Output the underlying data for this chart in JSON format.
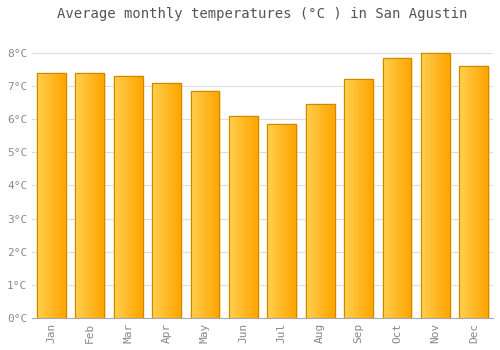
{
  "title": "Average monthly temperatures (°C ) in San Agustin",
  "months": [
    "Jan",
    "Feb",
    "Mar",
    "Apr",
    "May",
    "Jun",
    "Jul",
    "Aug",
    "Sep",
    "Oct",
    "Nov",
    "Dec"
  ],
  "values": [
    7.4,
    7.4,
    7.3,
    7.1,
    6.85,
    6.1,
    5.85,
    6.45,
    7.2,
    7.85,
    8.0,
    7.6
  ],
  "bar_color_main": "#FFA500",
  "bar_color_light": "#FFD050",
  "bar_color_edge": "#CC8800",
  "ylim": [
    0,
    8.8
  ],
  "yticks": [
    0,
    1,
    2,
    3,
    4,
    5,
    6,
    7,
    8
  ],
  "ytick_labels": [
    "0°C",
    "1°C",
    "2°C",
    "3°C",
    "4°C",
    "5°C",
    "6°C",
    "7°C",
    "8°C"
  ],
  "grid_color": "#dddddd",
  "background_color": "#ffffff",
  "title_fontsize": 10,
  "tick_fontsize": 8,
  "tick_color": "#888888",
  "title_color": "#555555",
  "font_family": "monospace",
  "bar_width": 0.75
}
